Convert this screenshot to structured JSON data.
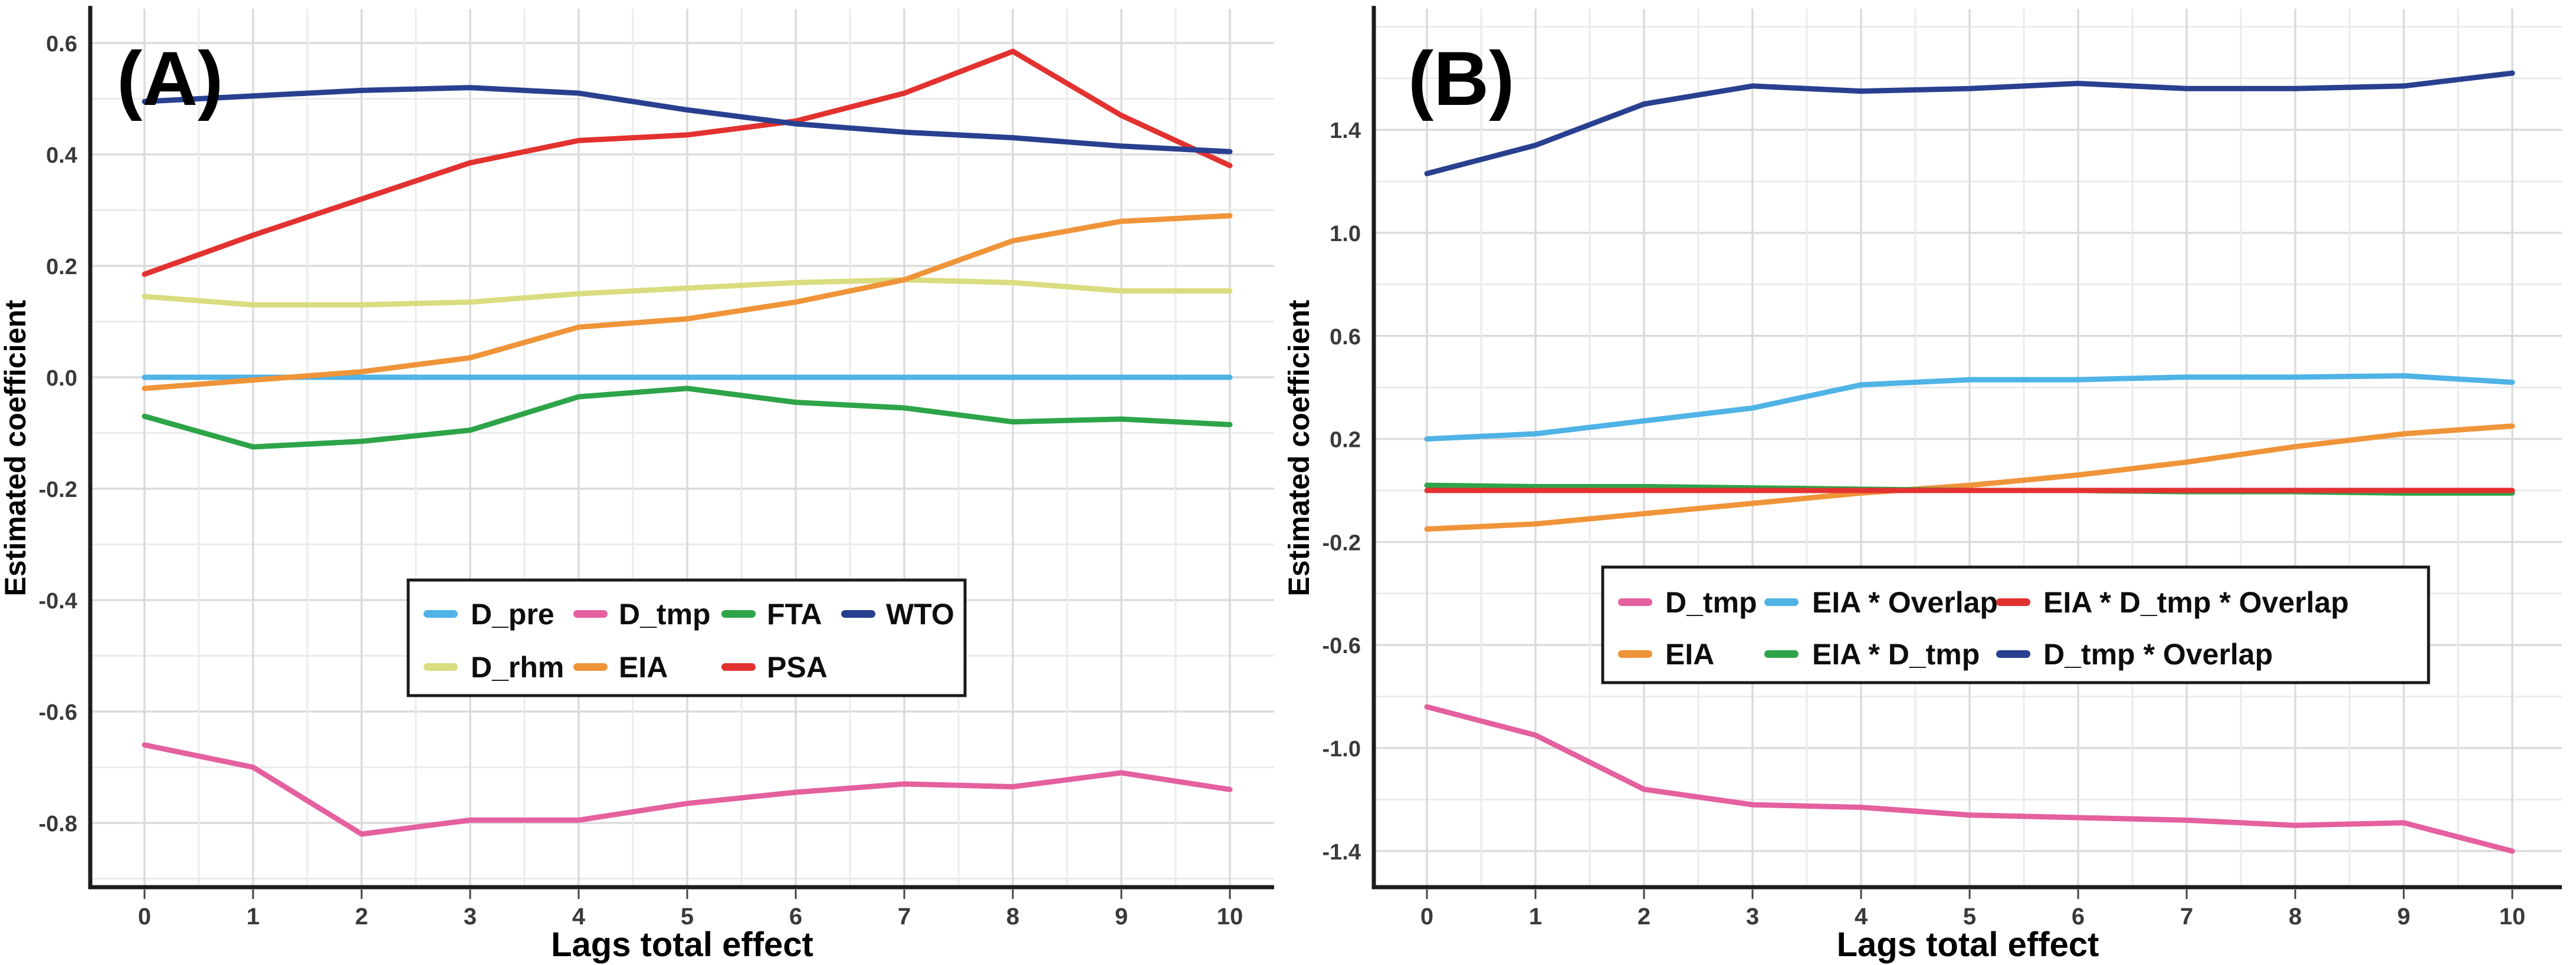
{
  "figure": {
    "background": "#ffffff",
    "grid_color_major": "#dbdbdb",
    "grid_color_minor": "#ebebeb",
    "axis_color": "#1c1c1c",
    "tick_label_color": "#3a3a3a"
  },
  "chart_data": [
    {
      "type": "line",
      "panel_label": "(A)",
      "xlabel": "Lags total effect",
      "ylabel": "Estimated coefficient",
      "x": [
        0,
        1,
        2,
        3,
        4,
        5,
        6,
        7,
        8,
        9,
        10
      ],
      "x_tick_labels": [
        "0",
        "1",
        "2",
        "3",
        "4",
        "5",
        "6",
        "7",
        "8",
        "9",
        "10"
      ],
      "xlim": [
        -0.5,
        10.5
      ],
      "ylim": [
        -0.92,
        0.66
      ],
      "y_major_ticks": [
        0.6,
        0.4,
        0.2,
        0.0,
        -0.2,
        -0.4,
        -0.6,
        -0.8
      ],
      "y_tick_labels": [
        "0.6",
        "0.4",
        "0.2",
        "0.0",
        "-0.2",
        "-0.4",
        "-0.6",
        "-0.8"
      ],
      "y_minor_step": 0.1,
      "grid": true,
      "legend": {
        "position": "inside-lower-center",
        "rows": [
          [
            "D_pre",
            "D_tmp",
            "FTA",
            "WTO"
          ],
          [
            "D_rhm",
            "EIA",
            "PSA"
          ]
        ]
      },
      "series": [
        {
          "name": "D_pre",
          "color": "#4FB3E5",
          "values": [
            0.0,
            0.0,
            0.0,
            0.0,
            0.0,
            0.0,
            0.0,
            0.0,
            0.0,
            0.0,
            0.0
          ]
        },
        {
          "name": "D_rhm",
          "color": "#D9DC7F",
          "values": [
            0.145,
            0.13,
            0.13,
            0.135,
            0.15,
            0.16,
            0.17,
            0.175,
            0.17,
            0.155,
            0.155
          ]
        },
        {
          "name": "D_tmp",
          "color": "#E4609E",
          "values": [
            -0.66,
            -0.7,
            -0.82,
            -0.795,
            -0.795,
            -0.765,
            -0.745,
            -0.73,
            -0.735,
            -0.71,
            -0.74
          ]
        },
        {
          "name": "EIA",
          "color": "#EF9439",
          "values": [
            -0.02,
            -0.005,
            0.01,
            0.035,
            0.09,
            0.105,
            0.135,
            0.175,
            0.245,
            0.28,
            0.29
          ]
        },
        {
          "name": "FTA",
          "color": "#2EA449",
          "values": [
            -0.07,
            -0.125,
            -0.115,
            -0.095,
            -0.035,
            -0.02,
            -0.045,
            -0.055,
            -0.08,
            -0.075,
            -0.085
          ]
        },
        {
          "name": "PSA",
          "color": "#E23230",
          "values": [
            0.185,
            0.255,
            0.32,
            0.385,
            0.425,
            0.435,
            0.46,
            0.51,
            0.585,
            0.47,
            0.38
          ]
        },
        {
          "name": "WTO",
          "color": "#28408F",
          "values": [
            0.495,
            0.505,
            0.515,
            0.52,
            0.51,
            0.48,
            0.455,
            0.44,
            0.43,
            0.415,
            0.405
          ]
        }
      ]
    },
    {
      "type": "line",
      "panel_label": "(B)",
      "xlabel": "Lags total effect",
      "ylabel": "Estimated coefficient",
      "x": [
        0,
        1,
        2,
        3,
        4,
        5,
        6,
        7,
        8,
        9,
        10
      ],
      "x_tick_labels": [
        "0",
        "1",
        "2",
        "3",
        "4",
        "5",
        "6",
        "7",
        "8",
        "9",
        "10"
      ],
      "xlim": [
        -0.5,
        10.5
      ],
      "ylim": [
        -1.54,
        1.87
      ],
      "y_major_ticks": [
        1.4,
        1.0,
        0.6,
        0.2,
        -0.2,
        -0.6,
        -1.0,
        -1.4
      ],
      "y_tick_labels": [
        "1.4",
        "1.0",
        "0.6",
        "0.2",
        "-0.2",
        "-0.6",
        "-1.0",
        "-1.4"
      ],
      "y_minor_step": 0.2,
      "grid": true,
      "legend": {
        "position": "inside-lower-right",
        "rows": [
          [
            "D_tmp",
            "EIA * Overlap",
            "EIA * D_tmp * Overlap"
          ],
          [
            "EIA",
            "EIA * D_tmp",
            "D_tmp * Overlap"
          ]
        ]
      },
      "series": [
        {
          "name": "D_tmp",
          "color": "#E4609E",
          "values": [
            -0.84,
            -0.95,
            -1.16,
            -1.22,
            -1.23,
            -1.26,
            -1.27,
            -1.28,
            -1.3,
            -1.29,
            -1.4
          ]
        },
        {
          "name": "D_tmp * Overlap",
          "color": "#28408F",
          "values": [
            1.23,
            1.34,
            1.5,
            1.57,
            1.55,
            1.56,
            1.58,
            1.56,
            1.56,
            1.57,
            1.62
          ]
        },
        {
          "name": "EIA",
          "color": "#EF9439",
          "values": [
            -0.15,
            -0.13,
            -0.09,
            -0.05,
            -0.01,
            0.02,
            0.06,
            0.11,
            0.17,
            0.22,
            0.25
          ]
        },
        {
          "name": "EIA * D_tmp",
          "color": "#2EA449",
          "values": [
            0.02,
            0.015,
            0.015,
            0.01,
            0.005,
            0.0,
            0.0,
            -0.005,
            -0.005,
            -0.01,
            -0.01
          ]
        },
        {
          "name": "EIA * D_tmp * Overlap",
          "color": "#E23230",
          "values": [
            0.0,
            0.0,
            0.0,
            0.0,
            0.0,
            0.0,
            0.0,
            0.0,
            0.0,
            0.0,
            0.0
          ]
        },
        {
          "name": "EIA * Overlap",
          "color": "#4FB3E5",
          "values": [
            0.2,
            0.22,
            0.27,
            0.32,
            0.41,
            0.43,
            0.43,
            0.44,
            0.44,
            0.445,
            0.42
          ]
        }
      ]
    }
  ]
}
